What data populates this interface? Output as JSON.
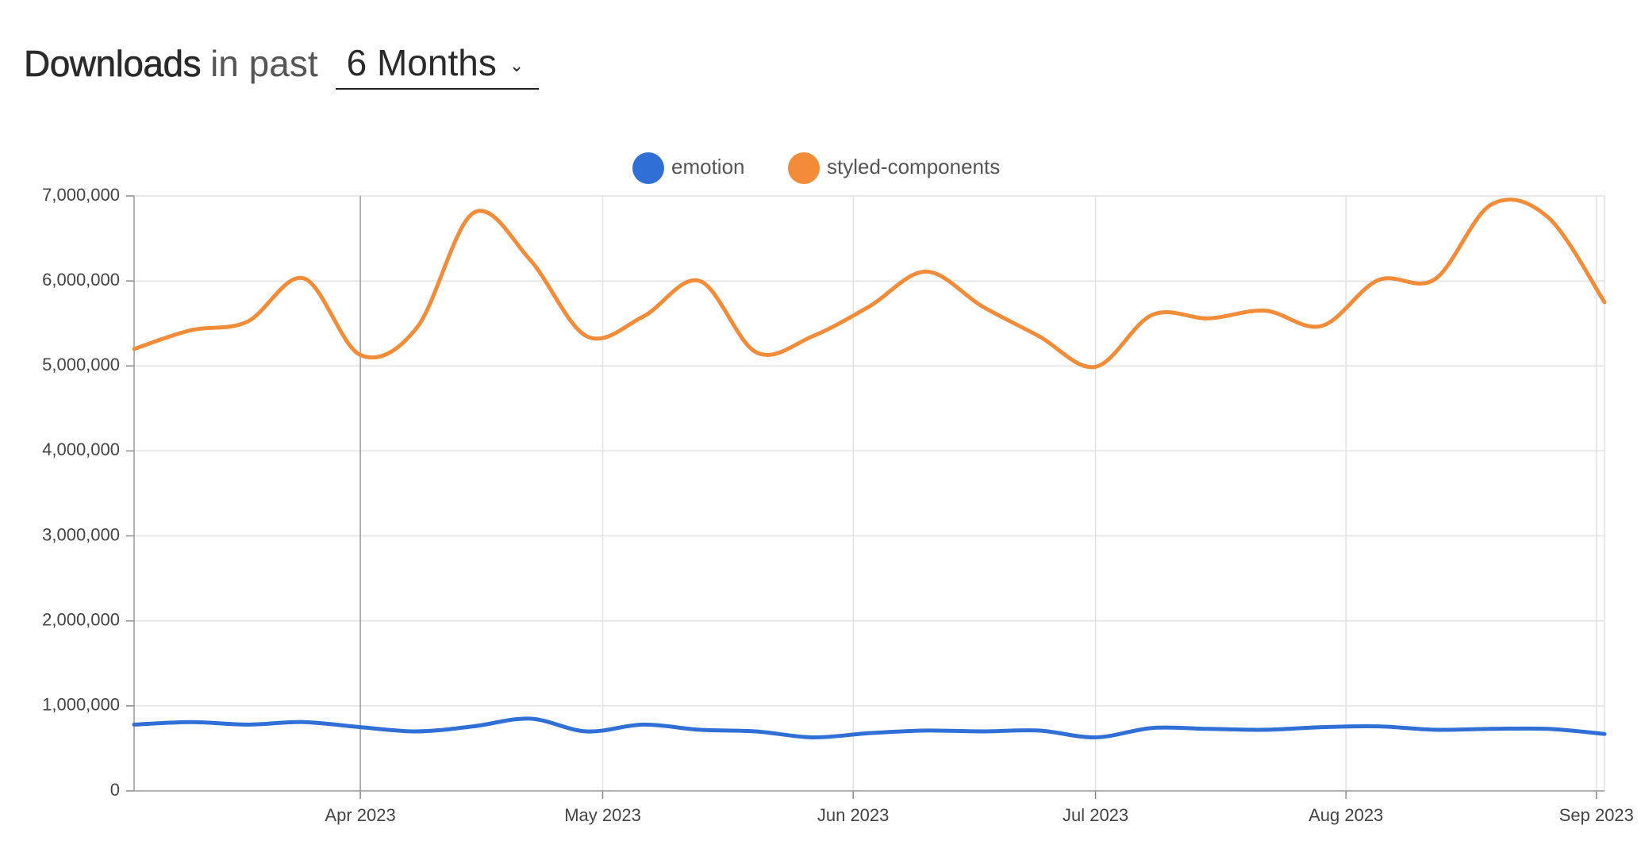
{
  "header": {
    "title_strong": "Downloads",
    "title_light": "in past",
    "period_value": "6 Months",
    "period_options": [
      "6 Months"
    ]
  },
  "chart_data": {
    "type": "line",
    "title": "",
    "xlabel": "",
    "ylabel": "",
    "ylim": [
      0,
      7000000
    ],
    "yticks": [
      0,
      1000000,
      2000000,
      3000000,
      4000000,
      5000000,
      6000000,
      7000000
    ],
    "ytick_labels": [
      "0",
      "1,000,000",
      "2,000,000",
      "3,000,000",
      "4,000,000",
      "5,000,000",
      "6,000,000",
      "7,000,000"
    ],
    "xlim": [
      "2023-03-04",
      "2023-09-02"
    ],
    "xticks": [
      "2023-04-01",
      "2023-05-01",
      "2023-06-01",
      "2023-07-01",
      "2023-08-01",
      "2023-09-01"
    ],
    "xtick_labels": [
      "Apr 2023",
      "May 2023",
      "Jun 2023",
      "Jul 2023",
      "Aug 2023",
      "Sep 2023"
    ],
    "grid": true,
    "legend_position": "top-center",
    "x": [
      "2023-03-04",
      "2023-03-11",
      "2023-03-18",
      "2023-03-25",
      "2023-04-01",
      "2023-04-08",
      "2023-04-15",
      "2023-04-22",
      "2023-04-29",
      "2023-05-06",
      "2023-05-13",
      "2023-05-20",
      "2023-05-27",
      "2023-06-03",
      "2023-06-10",
      "2023-06-17",
      "2023-06-24",
      "2023-07-01",
      "2023-07-08",
      "2023-07-15",
      "2023-07-22",
      "2023-07-29",
      "2023-08-05",
      "2023-08-12",
      "2023-08-19",
      "2023-08-26",
      "2023-09-02"
    ],
    "series": [
      {
        "name": "emotion",
        "color": "#3070d6",
        "values": [
          780000,
          810000,
          780000,
          810000,
          750000,
          700000,
          760000,
          850000,
          700000,
          780000,
          720000,
          700000,
          630000,
          680000,
          710000,
          700000,
          710000,
          630000,
          740000,
          730000,
          720000,
          750000,
          760000,
          720000,
          730000,
          730000,
          670000
        ]
      },
      {
        "name": "styled-components",
        "color": "#f28c38",
        "values": [
          5200000,
          5420000,
          5520000,
          6030000,
          5130000,
          5450000,
          6800000,
          6250000,
          5350000,
          5580000,
          6000000,
          5160000,
          5350000,
          5700000,
          6110000,
          5700000,
          5350000,
          4990000,
          5600000,
          5560000,
          5650000,
          5470000,
          6010000,
          6020000,
          6900000,
          6750000,
          5750000
        ]
      }
    ]
  }
}
